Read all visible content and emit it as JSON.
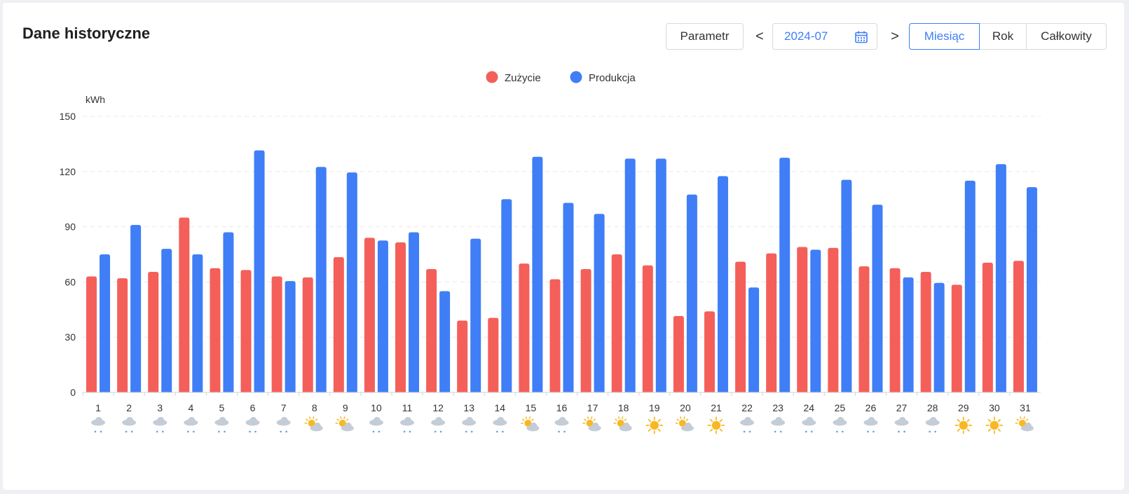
{
  "header": {
    "title": "Dane historyczne"
  },
  "toolbar": {
    "param_label": "Parametr",
    "prev_label": "<",
    "next_label": ">",
    "date_value": "2024-07",
    "tabs": [
      "Miesiąc",
      "Rok",
      "Całkowity"
    ],
    "active_tab": "Miesiąc"
  },
  "colors": {
    "consumption": "#f45f5a",
    "production": "#3f7ef6",
    "accent": "#3f7ef6"
  },
  "chart_data": {
    "type": "bar",
    "ylabel": "kWh",
    "ylim": [
      0,
      150
    ],
    "yticks": [
      0,
      30,
      60,
      90,
      120,
      150
    ],
    "legend_position": "top-center",
    "grid": true,
    "categories": [
      "1",
      "2",
      "3",
      "4",
      "5",
      "6",
      "7",
      "8",
      "9",
      "10",
      "11",
      "12",
      "13",
      "14",
      "15",
      "16",
      "17",
      "18",
      "19",
      "20",
      "21",
      "22",
      "23",
      "24",
      "25",
      "26",
      "27",
      "28",
      "29",
      "30",
      "31"
    ],
    "series": [
      {
        "name": "Zużycie",
        "values": [
          63,
          62,
          65.5,
          95,
          67.5,
          66.5,
          63,
          62.5,
          73.5,
          84,
          81.5,
          67,
          39,
          40.5,
          70,
          61.5,
          67,
          75,
          69,
          41.5,
          44,
          71,
          75.5,
          79,
          78.5,
          68.5,
          67.5,
          65.5,
          58.5,
          70.5,
          71.5
        ]
      },
      {
        "name": "Produkcja",
        "values": [
          75,
          91,
          78,
          75,
          87,
          131.5,
          60.5,
          122.5,
          119.5,
          82.5,
          87,
          55,
          83.5,
          105,
          128,
          103,
          97,
          127,
          127,
          107.5,
          117.5,
          57,
          127.5,
          77.5,
          115.5,
          102,
          62.5,
          59.5,
          115,
          124,
          111.5
        ]
      }
    ],
    "weather": [
      "rain",
      "rain",
      "rain",
      "rain",
      "rain",
      "rain",
      "rain",
      "partly-sunny",
      "partly-sunny",
      "rain",
      "rain",
      "rain",
      "rain",
      "rain",
      "partly-sunny",
      "rain",
      "partly-sunny",
      "partly-sunny",
      "sunny",
      "partly-sunny",
      "sunny",
      "rain",
      "rain",
      "rain",
      "rain",
      "rain",
      "rain",
      "rain",
      "sunny",
      "sunny",
      "partly-sunny"
    ]
  }
}
